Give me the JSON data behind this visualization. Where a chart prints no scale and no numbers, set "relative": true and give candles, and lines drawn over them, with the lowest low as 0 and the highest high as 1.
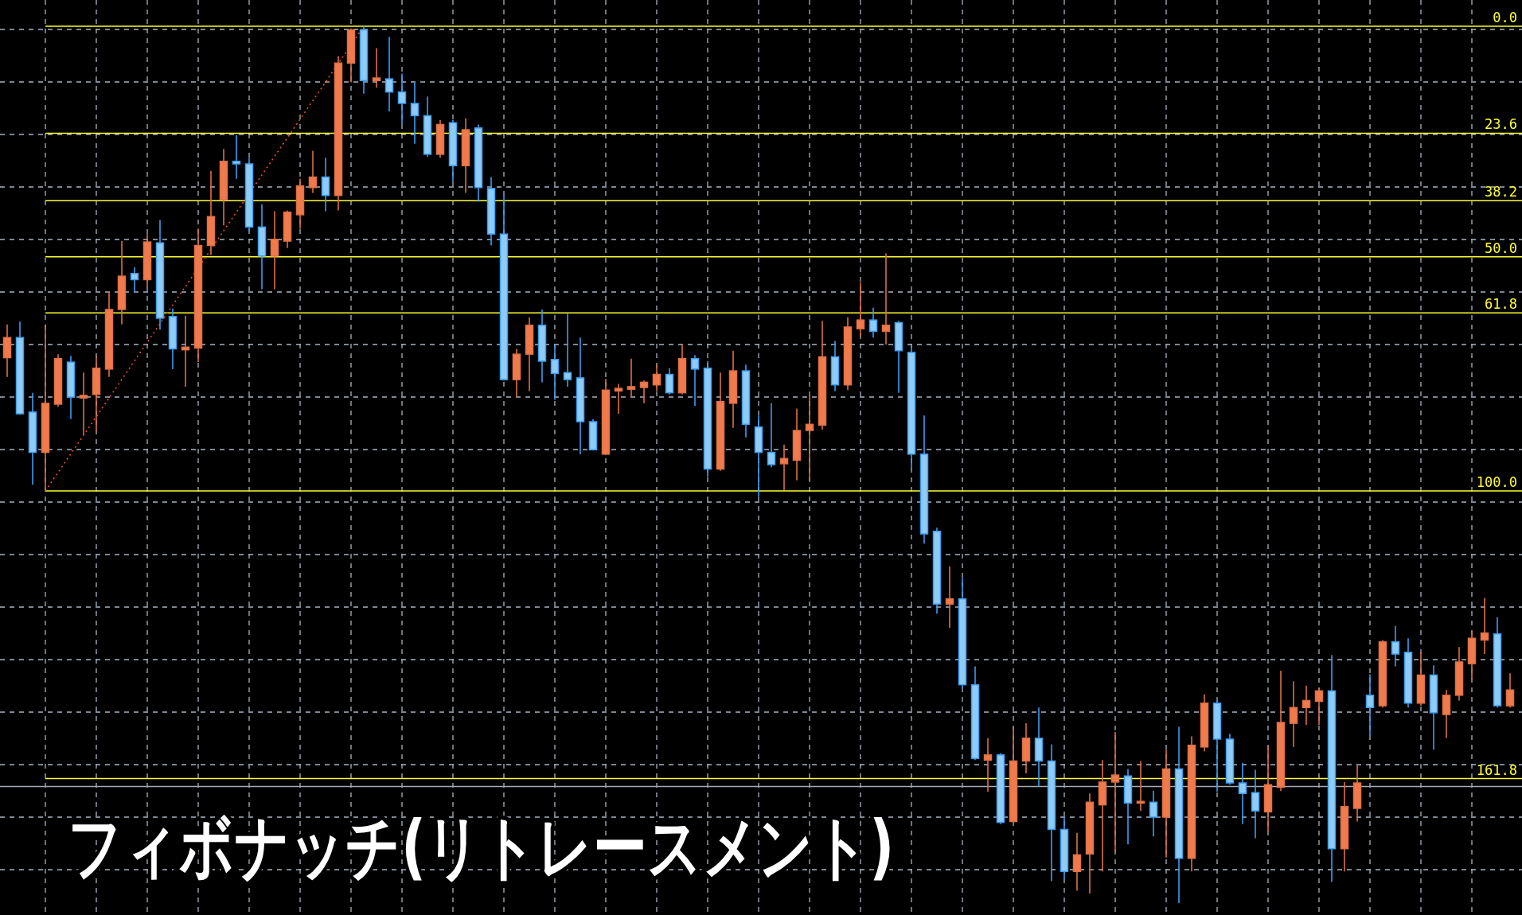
{
  "chart_data": {
    "type": "candlestick",
    "title": "フィボナッチ(リトレースメント)",
    "relative": true,
    "grid": true,
    "colors": [
      "#f07a4c",
      "#8ecbf7",
      "#8ecbf7",
      "#f07a4c",
      "#f07a4c",
      "#8ecbf7",
      "#f07a4c",
      "#f07a4c",
      "#f07a4c",
      "#f07a4c",
      "#8ecbf7",
      "#f07a4c",
      "#8ecbf7",
      "#8ecbf7",
      "#f07a4c",
      "#f07a4c",
      "#f07a4c",
      "#f07a4c",
      "#8ecbf7",
      "#8ecbf7",
      "#8ecbf7",
      "#f07a4c",
      "#f07a4c",
      "#f07a4c",
      "#f07a4c",
      "#8ecbf7",
      "#f07a4c",
      "#f07a4c",
      "#8ecbf7",
      "#f07a4c",
      "#8ecbf7",
      "#8ecbf7",
      "#8ecbf7",
      "#8ecbf7",
      "#f07a4c",
      "#8ecbf7",
      "#f07a4c",
      "#8ecbf7",
      "#8ecbf7",
      "#8ecbf7",
      "#f07a4c",
      "#f07a4c",
      "#8ecbf7",
      "#8ecbf7",
      "#8ecbf7",
      "#8ecbf7",
      "#8ecbf7",
      "#f07a4c",
      "#f07a4c",
      "#f07a4c",
      "#f07a4c",
      "#f07a4c",
      "#8ecbf7",
      "#f07a4c",
      "#8ecbf7",
      "#8ecbf7",
      "#f07a4c",
      "#f07a4c",
      "#8ecbf7",
      "#8ecbf7",
      "#8ecbf7",
      "#f07a4c",
      "#f07a4c",
      "#f07a4c",
      "#f07a4c",
      "#8ecbf7",
      "#f07a4c",
      "#f07a4c",
      "#8ecbf7",
      "#f07a4c",
      "#8ecbf7",
      "#8ecbf7",
      "#8ecbf7",
      "#8ecbf7",
      "#f07a4c",
      "#8ecbf7",
      "#8ecbf7",
      "#f07a4c",
      "#8ecbf7",
      "#f07a4c",
      "#f07a4c",
      "#8ecbf7",
      "#8ecbf7",
      "#8ecbf7",
      "#f07a4c",
      "#f07a4c",
      "#f07a4c",
      "#f07a4c",
      "#8ecbf7",
      "#f07a4c",
      "#8ecbf7",
      "#f07a4c",
      "#8ecbf7",
      "#f07a4c",
      "#f07a4c",
      "#8ecbf7",
      "#8ecbf7",
      "#8ecbf7",
      "#8ecbf7",
      "#f07a4c",
      "#f07a4c",
      "#f07a4c",
      "#f07a4c",
      "#f07a4c",
      "#8ecbf7",
      "#f07a4c",
      "#f07a4c",
      "#8ecbf7",
      "#f07a4c",
      "#8ecbf7",
      "#8ecbf7",
      "#f07a4c",
      "#8ecbf7",
      "#f07a4c",
      "#f07a4c",
      "#f07a4c",
      "#f07a4c",
      "#8ecbf7",
      "#f07a4c"
    ],
    "categories": [
      null,
      null,
      null,
      null,
      null,
      null,
      null,
      null,
      null,
      null,
      null,
      null,
      null,
      null,
      null,
      null,
      null,
      null,
      null,
      null,
      null,
      null,
      null,
      null,
      null,
      null,
      null,
      null,
      null,
      null,
      null,
      null,
      null,
      null,
      null,
      null,
      null,
      null,
      null,
      null,
      null,
      null,
      null,
      null,
      null,
      null,
      null,
      null,
      null,
      null,
      null,
      null,
      null,
      null,
      null,
      null,
      null,
      null,
      null,
      null,
      null,
      null,
      null,
      null,
      null,
      null,
      null,
      null,
      null,
      null,
      null,
      null,
      null,
      null,
      null,
      null,
      null,
      null,
      null,
      null,
      null,
      null,
      null,
      null,
      null,
      null,
      null,
      null,
      null,
      null,
      null,
      null,
      null,
      null,
      null,
      null,
      null,
      null,
      null,
      null,
      null,
      null,
      null,
      null,
      null,
      null,
      null,
      null,
      null,
      null,
      null,
      null,
      null,
      null,
      null,
      null,
      null,
      null,
      null
    ],
    "ohlc": [
      [
        0.622,
        0.66,
        0.6,
        0.645
      ],
      [
        0.645,
        0.663,
        0.557,
        0.558
      ],
      [
        0.56,
        0.582,
        0.477,
        0.514
      ],
      [
        0.514,
        0.66,
        0.47,
        0.57
      ],
      [
        0.569,
        0.626,
        0.566,
        0.621
      ],
      [
        0.617,
        0.624,
        0.552,
        0.577
      ],
      [
        0.576,
        0.605,
        0.534,
        0.579
      ],
      [
        0.58,
        0.624,
        0.538,
        0.61
      ],
      [
        0.609,
        0.697,
        0.6,
        0.677
      ],
      [
        0.677,
        0.755,
        0.66,
        0.715
      ],
      [
        0.718,
        0.725,
        0.697,
        0.711
      ],
      [
        0.711,
        0.763,
        0.703,
        0.754
      ],
      [
        0.753,
        0.779,
        0.654,
        0.667
      ],
      [
        0.669,
        0.678,
        0.609,
        0.632
      ],
      [
        0.631,
        0.67,
        0.589,
        0.634
      ],
      [
        0.633,
        0.769,
        0.617,
        0.75
      ],
      [
        0.75,
        0.835,
        0.739,
        0.783
      ],
      [
        0.802,
        0.86,
        0.773,
        0.846
      ],
      [
        0.846,
        0.876,
        0.826,
        0.843
      ],
      [
        0.843,
        0.85,
        0.766,
        0.771
      ],
      [
        0.771,
        0.797,
        0.7,
        0.738
      ],
      [
        0.738,
        0.789,
        0.7,
        0.757
      ],
      [
        0.755,
        0.79,
        0.747,
        0.788
      ],
      [
        0.785,
        0.826,
        0.769,
        0.818
      ],
      [
        0.816,
        0.858,
        0.81,
        0.828
      ],
      [
        0.828,
        0.85,
        0.789,
        0.807
      ],
      [
        0.807,
        0.966,
        0.79,
        0.958
      ],
      [
        0.958,
        0.996,
        0.936,
        0.996
      ],
      [
        0.996,
        1.0,
        0.923,
        0.938
      ],
      [
        0.938,
        0.975,
        0.93,
        0.941
      ],
      [
        0.94,
        0.988,
        0.903,
        0.925
      ],
      [
        0.925,
        0.946,
        0.888,
        0.912
      ],
      [
        0.912,
        0.936,
        0.866,
        0.898
      ],
      [
        0.898,
        0.92,
        0.851,
        0.854
      ],
      [
        0.854,
        0.893,
        0.85,
        0.888
      ],
      [
        0.89,
        0.893,
        0.823,
        0.841
      ],
      [
        0.841,
        0.895,
        0.81,
        0.882
      ],
      [
        0.884,
        0.888,
        0.8,
        0.816
      ],
      [
        0.815,
        0.828,
        0.75,
        0.763
      ],
      [
        0.763,
        0.807,
        0.596,
        0.597
      ],
      [
        0.597,
        0.632,
        0.577,
        0.626
      ],
      [
        0.626,
        0.668,
        0.584,
        0.659
      ],
      [
        0.659,
        0.677,
        0.594,
        0.618
      ],
      [
        0.62,
        0.637,
        0.574,
        0.604
      ],
      [
        0.605,
        0.672,
        0.589,
        0.597
      ],
      [
        0.599,
        0.645,
        0.512,
        0.549
      ],
      [
        0.549,
        0.552,
        0.516,
        0.517
      ],
      [
        0.512,
        0.598,
        0.511,
        0.585
      ],
      [
        0.584,
        0.592,
        0.558,
        0.587
      ],
      [
        0.586,
        0.621,
        0.577,
        0.589
      ],
      [
        0.588,
        0.596,
        0.57,
        0.594
      ],
      [
        0.591,
        0.614,
        0.584,
        0.603
      ],
      [
        0.603,
        0.61,
        0.58,
        0.582
      ],
      [
        0.582,
        0.637,
        0.58,
        0.621
      ],
      [
        0.621,
        0.625,
        0.567,
        0.609
      ],
      [
        0.61,
        0.618,
        0.486,
        0.495
      ],
      [
        0.495,
        0.605,
        0.493,
        0.572
      ],
      [
        0.57,
        0.63,
        0.542,
        0.607
      ],
      [
        0.607,
        0.614,
        0.531,
        0.546
      ],
      [
        0.543,
        0.556,
        0.464,
        0.514
      ],
      [
        0.514,
        0.57,
        0.497,
        0.5
      ],
      [
        0.501,
        0.523,
        0.471,
        0.507
      ],
      [
        0.505,
        0.564,
        0.482,
        0.539
      ],
      [
        0.539,
        0.579,
        0.482,
        0.546
      ],
      [
        0.545,
        0.664,
        0.54,
        0.623
      ],
      [
        0.623,
        0.641,
        0.584,
        0.591
      ],
      [
        0.591,
        0.668,
        0.585,
        0.657
      ],
      [
        0.655,
        0.708,
        0.646,
        0.665
      ],
      [
        0.665,
        0.679,
        0.645,
        0.652
      ],
      [
        0.652,
        0.741,
        0.637,
        0.659
      ],
      [
        0.662,
        0.664,
        0.582,
        0.63
      ],
      [
        0.628,
        0.637,
        0.495,
        0.512
      ],
      [
        0.512,
        0.556,
        0.41,
        0.421
      ],
      [
        0.424,
        0.428,
        0.33,
        0.341
      ],
      [
        0.341,
        0.384,
        0.314,
        0.347
      ],
      [
        0.347,
        0.371,
        0.245,
        0.249
      ],
      [
        0.249,
        0.27,
        0.163,
        0.165
      ],
      [
        0.163,
        0.188,
        0.127,
        0.169
      ],
      [
        0.169,
        0.171,
        0.09,
        0.092
      ],
      [
        0.093,
        0.201,
        0.092,
        0.162
      ],
      [
        0.162,
        0.205,
        0.148,
        0.188
      ],
      [
        0.188,
        0.223,
        0.133,
        0.162
      ],
      [
        0.162,
        0.181,
        0.025,
        0.084
      ],
      [
        0.084,
        0.098,
        0.028,
        0.036
      ],
      [
        0.036,
        0.08,
        0.014,
        0.055
      ],
      [
        0.056,
        0.125,
        0.011,
        0.115
      ],
      [
        0.112,
        0.163,
        0.036,
        0.138
      ],
      [
        0.138,
        0.195,
        0.058,
        0.146
      ],
      [
        0.145,
        0.153,
        0.067,
        0.114
      ],
      [
        0.114,
        0.162,
        0.105,
        0.116
      ],
      [
        0.115,
        0.128,
        0.076,
        0.098
      ],
      [
        0.098,
        0.175,
        0.052,
        0.153
      ],
      [
        0.153,
        0.201,
        0,
        0.051
      ],
      [
        0.051,
        0.19,
        0.036,
        0.18
      ],
      [
        0.178,
        0.238,
        0.173,
        0.228
      ],
      [
        0.228,
        0.231,
        0.127,
        0.187
      ],
      [
        0.187,
        0.193,
        0.135,
        0.137
      ],
      [
        0.137,
        0.16,
        0.09,
        0.125
      ],
      [
        0.126,
        0.152,
        0.074,
        0.105
      ],
      [
        0.104,
        0.179,
        0.082,
        0.135
      ],
      [
        0.132,
        0.265,
        0.128,
        0.206
      ],
      [
        0.205,
        0.253,
        0.178,
        0.223
      ],
      [
        0.223,
        0.248,
        0.203,
        0.231
      ],
      [
        0.23,
        0.245,
        0.203,
        0.242
      ],
      [
        0.242,
        0.283,
        0.024,
        0.062
      ],
      [
        0.062,
        0.138,
        0.036,
        0.11
      ],
      [
        0.108,
        0.157,
        0.093,
        0.137
      ],
      [
        0.237,
        0.261,
        0.191,
        0.223
      ],
      [
        0.225,
        0.3,
        0.223,
        0.298
      ],
      [
        0.298,
        0.316,
        0.27,
        0.284
      ],
      [
        0.286,
        0.302,
        0.223,
        0.228
      ],
      [
        0.228,
        0.286,
        0.225,
        0.26
      ],
      [
        0.26,
        0.271,
        0.175,
        0.217
      ],
      [
        0.215,
        0.243,
        0.188,
        0.237
      ],
      [
        0.237,
        0.292,
        0.231,
        0.275
      ],
      [
        0.273,
        0.311,
        0.255,
        0.302
      ],
      [
        0.3,
        0.348,
        0.284,
        0.308
      ],
      [
        0.307,
        0.326,
        0.223,
        0.225
      ],
      [
        0.225,
        0.262,
        0.223,
        0.243
      ]
    ],
    "series": [
      {
        "type": "line",
        "color": "#e8502a",
        "line_style": "dotted",
        "values": [
          null,
          null,
          null,
          0.47,
          null,
          null,
          null,
          null,
          null,
          null,
          null,
          null,
          null,
          null,
          null,
          null,
          null,
          null,
          null,
          null,
          null,
          null,
          null,
          null,
          null,
          null,
          null,
          null,
          1.0,
          null,
          null,
          null,
          null,
          null,
          null,
          null,
          null,
          null,
          null,
          null,
          null,
          null,
          null,
          null,
          null,
          null,
          null,
          null,
          null,
          null,
          null,
          null,
          null,
          null,
          null,
          null,
          null,
          null,
          null,
          null,
          null,
          null,
          null,
          null,
          null,
          null,
          null,
          null,
          null,
          null,
          null,
          null,
          null,
          null,
          null,
          null,
          null,
          null,
          null,
          null,
          null,
          null,
          null,
          null,
          null,
          null,
          null,
          null,
          null,
          null,
          null,
          null,
          null,
          null,
          null,
          null,
          null,
          null,
          null,
          null,
          null,
          null,
          null,
          null,
          null,
          null,
          null,
          null,
          null,
          null,
          null,
          null,
          null,
          null,
          null,
          null,
          null,
          null,
          null
        ]
      }
    ],
    "ref_lines": [
      {
        "axis": "y",
        "value": 1.0,
        "color": "#ffff33"
      },
      {
        "axis": "y",
        "value": 0.878,
        "color": "#ffff33"
      },
      {
        "axis": "y",
        "value": 0.801,
        "color": "#ffff33"
      },
      {
        "axis": "y",
        "value": 0.737,
        "color": "#ffff33"
      },
      {
        "axis": "y",
        "value": 0.673,
        "color": "#ffff33"
      },
      {
        "axis": "y",
        "value": 0.47,
        "color": "#ffff33"
      },
      {
        "axis": "y",
        "value": 0.142,
        "color": "#ffff33"
      },
      {
        "axis": "y",
        "value": 0.133,
        "color": "#a3adb8"
      }
    ],
    "annotations": [
      {
        "text": "0.0",
        "y": 1.0
      },
      {
        "text": "23.6",
        "y": 0.878
      },
      {
        "text": "38.2",
        "y": 0.801
      },
      {
        "text": "50.0",
        "y": 0.737
      },
      {
        "text": "61.8",
        "y": 0.673
      },
      {
        "text": "100.0",
        "y": 0.47
      },
      {
        "text": "161.8",
        "y": 0.142
      }
    ]
  }
}
